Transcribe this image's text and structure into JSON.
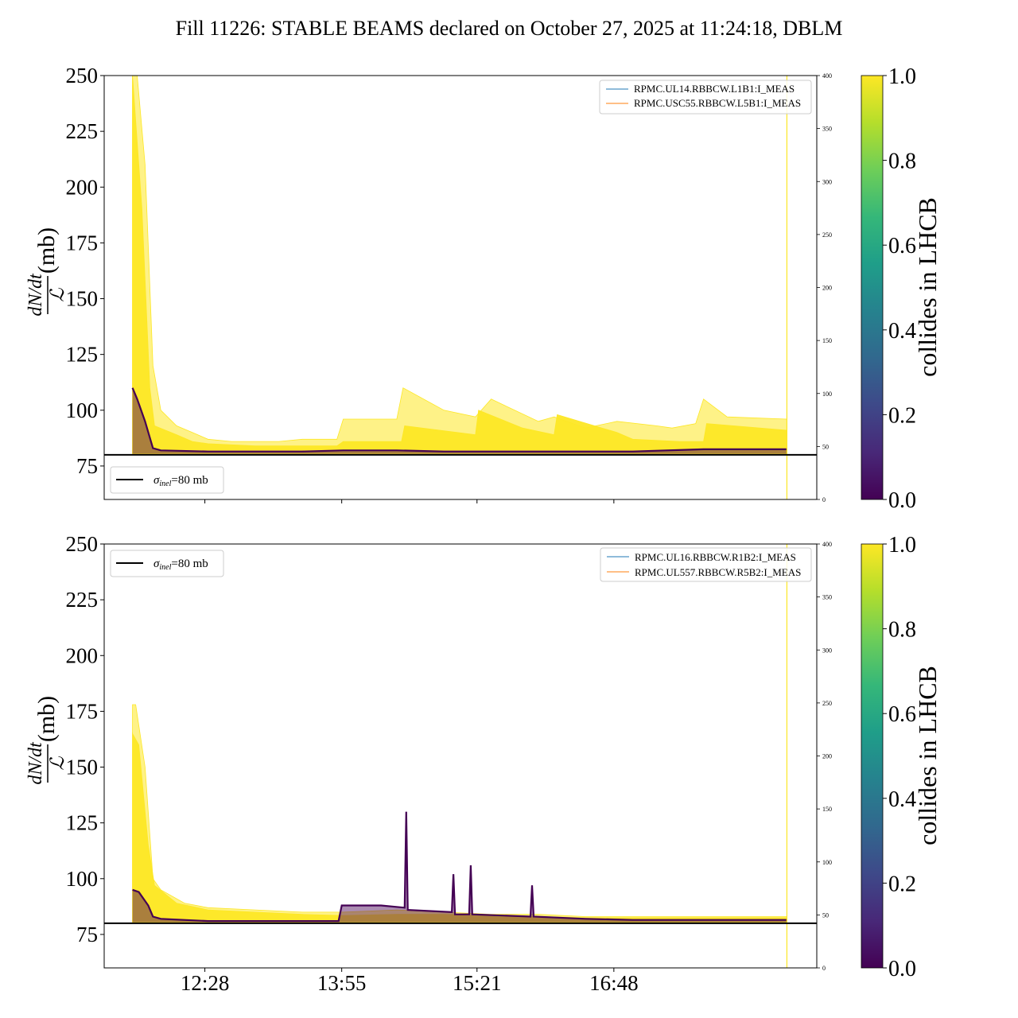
{
  "figure": {
    "title": "Fill 11226: STABLE BEAMS declared on October 27, 2025 at 11:24:18, DBLM",
    "colors": {
      "collides_high": "#fde725",
      "collides_low": "#440154",
      "legend_line_1": "#1f77b4",
      "legend_line_2": "#ff7f0e",
      "reference_line": "#000000"
    }
  },
  "chart_data": [
    {
      "type": "line",
      "panel": "top",
      "ylabel_numerator": "dN/dt",
      "ylabel_denominator": "ℒ",
      "ylabel_unit": "(mb)",
      "ylim": [
        60,
        250
      ],
      "yticks": [
        "75",
        "100",
        "125",
        "150",
        "175",
        "200",
        "225",
        "250"
      ],
      "ytick_values": [
        75,
        100,
        125,
        150,
        175,
        200,
        225,
        250
      ],
      "xticks": [
        "12:28",
        "13:55",
        "15:21",
        "16:48"
      ],
      "xlabels_visible": false,
      "secondary_y": {
        "ylim": [
          0,
          400
        ],
        "ticks": [
          "0",
          "50",
          "100",
          "150",
          "200",
          "250",
          "300",
          "350",
          "400"
        ]
      },
      "legend_top_right": [
        "RPMC.UL14.RBBCW.L1B1:I_MEAS",
        "RPMC.USC55.RBBCW.L5B1:I_MEAS"
      ],
      "legend_reference": {
        "label_sigma": "σ",
        "label_sub": "inel",
        "label_rest": "=80 mb"
      },
      "reference_y": 80,
      "vertical_marker_time": "18:38",
      "series": [
        {
          "name": "collides in LHCB = 1.0 (upper envelope)",
          "x": [
            "11:42",
            "11:45",
            "11:50",
            "11:55",
            "12:00",
            "12:10",
            "12:20",
            "12:30",
            "12:45",
            "13:00",
            "13:15",
            "13:30",
            "13:52",
            "13:56",
            "14:30",
            "14:34",
            "15:00",
            "15:20",
            "15:30",
            "16:00",
            "16:10",
            "16:30",
            "16:50",
            "17:15",
            "17:25",
            "17:40",
            "17:45",
            "18:00",
            "18:38"
          ],
          "values": [
            250,
            250,
            210,
            120,
            100,
            93,
            90,
            87,
            86,
            86,
            86,
            87,
            87,
            96,
            96,
            110,
            100,
            97,
            105,
            95,
            97,
            92,
            95,
            93,
            92,
            94,
            105,
            97,
            96
          ]
        },
        {
          "name": "collides in LHCB = 1.0 (dense band top)",
          "x": [
            "11:42",
            "11:48",
            "11:53",
            "11:56",
            "12:10",
            "12:20",
            "12:30",
            "13:00",
            "13:30",
            "13:52",
            "13:56",
            "14:33",
            "14:35",
            "15:20",
            "15:22",
            "15:50",
            "16:10",
            "16:12",
            "16:50",
            "17:00",
            "17:30",
            "17:45",
            "17:47",
            "18:38"
          ],
          "values": [
            250,
            190,
            110,
            93,
            89,
            86,
            85,
            84,
            84,
            84,
            86,
            86,
            93,
            89,
            100,
            92,
            89,
            98,
            90,
            87,
            86,
            86,
            94,
            91
          ]
        },
        {
          "name": "collides in LHCB = 0.0",
          "x": [
            "11:42",
            "11:45",
            "11:50",
            "11:55",
            "12:00",
            "12:30",
            "13:30",
            "13:56",
            "14:30",
            "15:00",
            "15:30",
            "16:00",
            "16:30",
            "17:00",
            "17:45",
            "18:38"
          ],
          "values": [
            110,
            105,
            95,
            83,
            82,
            81.5,
            81.5,
            82,
            82,
            81.5,
            81.5,
            81.5,
            81.5,
            81.5,
            82.5,
            82.5
          ]
        }
      ]
    },
    {
      "type": "line",
      "panel": "bottom",
      "ylabel_numerator": "dN/dt",
      "ylabel_denominator": "ℒ",
      "ylabel_unit": "(mb)",
      "ylim": [
        60,
        250
      ],
      "yticks": [
        "75",
        "100",
        "125",
        "150",
        "175",
        "200",
        "225",
        "250"
      ],
      "ytick_values": [
        75,
        100,
        125,
        150,
        175,
        200,
        225,
        250
      ],
      "xticks": [
        "12:28",
        "13:55",
        "15:21",
        "16:48"
      ],
      "xlabels_visible": true,
      "secondary_y": {
        "ylim": [
          0,
          400
        ],
        "ticks": [
          "0",
          "50",
          "100",
          "150",
          "200",
          "250",
          "300",
          "350",
          "400"
        ]
      },
      "legend_top_right": [
        "RPMC.UL16.RBBCW.R1B2:I_MEAS",
        "RPMC.UL557.RBBCW.R5B2:I_MEAS"
      ],
      "legend_reference": {
        "label_sigma": "σ",
        "label_sub": "inel",
        "label_rest": "=80 mb"
      },
      "reference_y": 80,
      "vertical_marker_time": "18:38",
      "series": [
        {
          "name": "collides in LHCB = 1.0 (upper envelope)",
          "x": [
            "11:42",
            "11:44",
            "11:50",
            "11:55",
            "12:00",
            "12:15",
            "12:30",
            "13:00",
            "13:30",
            "13:56",
            "14:30",
            "15:00",
            "15:30",
            "16:00",
            "16:30",
            "17:00",
            "17:45",
            "18:38"
          ],
          "values": [
            178,
            178,
            150,
            100,
            95,
            89,
            87,
            86,
            85,
            85,
            86,
            85,
            84,
            84,
            83,
            83,
            83,
            83
          ]
        },
        {
          "name": "collides in LHCB = 1.0 (dense band top)",
          "x": [
            "11:42",
            "11:46",
            "11:52",
            "11:56",
            "12:10",
            "12:30",
            "13:00",
            "13:30",
            "13:56",
            "14:30",
            "15:00",
            "15:30",
            "16:00",
            "16:30",
            "17:00",
            "18:38"
          ],
          "values": [
            165,
            160,
            115,
            97,
            89,
            86,
            85,
            84,
            83.5,
            84,
            84,
            83.5,
            83,
            82.5,
            82.5,
            82.5
          ]
        },
        {
          "name": "collides in LHCB = 0.0",
          "x": [
            "11:42",
            "11:46",
            "11:52",
            "11:55",
            "12:00",
            "12:30",
            "13:30",
            "13:53",
            "13:55",
            "14:20",
            "14:35",
            "14:36",
            "14:37",
            "15:05",
            "15:06",
            "15:07",
            "15:16",
            "15:17",
            "15:18",
            "15:55",
            "15:56",
            "15:57",
            "16:30",
            "17:00",
            "17:45",
            "18:38"
          ],
          "values": [
            95,
            94,
            88,
            83,
            82,
            81,
            81,
            81,
            88,
            88,
            87,
            130,
            86,
            85,
            102,
            84,
            84,
            106,
            84,
            83,
            97,
            83,
            82,
            81.5,
            81.5,
            81.5
          ]
        }
      ]
    }
  ],
  "colorbar": {
    "label": "collides in LHCB",
    "range": [
      0.0,
      1.0
    ],
    "ticks": [
      "0.0",
      "0.2",
      "0.4",
      "0.6",
      "0.8",
      "1.0"
    ],
    "stops": [
      "#440154",
      "#482878",
      "#3e4989",
      "#31688e",
      "#26828e",
      "#1f9e89",
      "#35b779",
      "#6ece58",
      "#b5de2b",
      "#fde725"
    ]
  }
}
